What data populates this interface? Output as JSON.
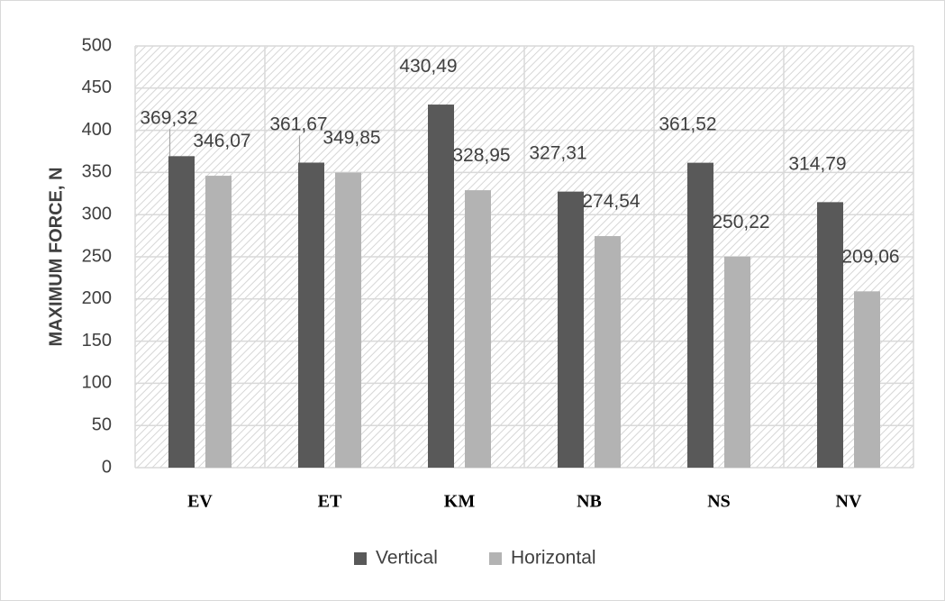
{
  "chart_data": {
    "type": "bar",
    "ylabel": "MAXIMUM FORCE,  N",
    "xlabel": "",
    "categories": [
      "EV",
      "ET",
      "KM",
      "NB",
      "NS",
      "NV"
    ],
    "series": [
      {
        "name": "Vertical",
        "color": "#595959",
        "values": [
          369.32,
          361.67,
          430.49,
          327.31,
          361.52,
          314.79
        ],
        "labels": [
          "369,32",
          "361,67",
          "430,49",
          "327,31",
          "361,52",
          "314,79"
        ]
      },
      {
        "name": "Horizontal",
        "color": "#b3b3b3",
        "values": [
          346.07,
          349.85,
          328.95,
          274.54,
          250.22,
          209.06
        ],
        "labels": [
          "346,07",
          "349,85",
          "328,95",
          "274,54",
          "250,22",
          "209,06"
        ]
      }
    ],
    "ylim": [
      0,
      500
    ],
    "yticks": [
      0,
      50,
      100,
      150,
      200,
      250,
      300,
      350,
      400,
      450,
      500
    ],
    "grid": true,
    "legend_position": "bottom"
  }
}
